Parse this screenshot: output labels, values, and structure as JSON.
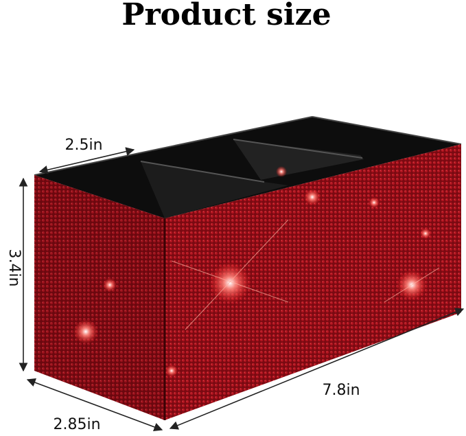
{
  "header": {
    "title": "Product size"
  },
  "dimensions": {
    "width": "2.5in",
    "height": "3.4in",
    "length": "7.8in",
    "depth": "2.85in"
  }
}
